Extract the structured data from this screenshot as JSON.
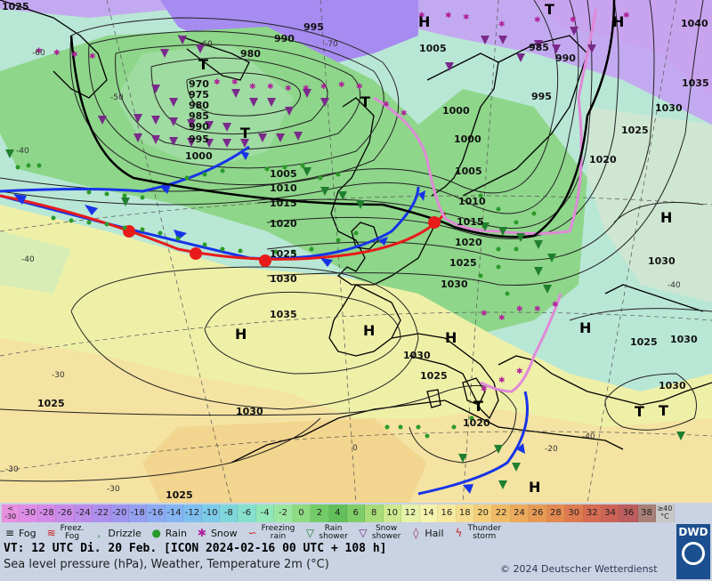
{
  "map": {
    "isobar_labels": [
      "1025",
      "990",
      "995",
      "1005",
      "985",
      "990",
      "995",
      "980",
      "970",
      "975",
      "980",
      "985",
      "990",
      "995",
      "1000",
      "1000",
      "1000",
      "1005",
      "1005",
      "1010",
      "1010",
      "1015",
      "1015",
      "1020",
      "1020",
      "1025",
      "1025",
      "1030",
      "1030",
      "1035",
      "1030",
      "1025",
      "1025",
      "1030",
      "1030",
      "1025",
      "1020",
      "1040",
      "1035",
      "1030",
      "1025",
      "1020",
      "1030",
      "1030",
      "1025"
    ],
    "pressure_centers": [
      "T",
      "T",
      "T",
      "T",
      "H",
      "T",
      "H",
      "H",
      "H",
      "H",
      "H",
      "T",
      "T",
      "H",
      "H"
    ],
    "temp_labels": [
      "-40",
      "-60",
      "-70",
      "-60",
      "-50",
      "-40",
      "-30",
      "-40",
      "-30",
      "-30",
      "0",
      "-40",
      "-20",
      "-30",
      "-40",
      "-50",
      "20",
      "-30",
      "20",
      "-20",
      "-20",
      "-30"
    ]
  },
  "legend": {
    "scale": [
      "<\n-30",
      "-30",
      "-28",
      "-26",
      "-24",
      "-22",
      "-20",
      "-18",
      "-16",
      "-14",
      "-12",
      "-10",
      "-8",
      "-6",
      "-4",
      "-2",
      "0",
      "2",
      "4",
      "6",
      "8",
      "10",
      "12",
      "14",
      "16",
      "18",
      "20",
      "22",
      "24",
      "26",
      "28",
      "30",
      "32",
      "34",
      "36",
      "38",
      "≥40\n°C"
    ],
    "scale_colors": [
      "#e88fe0",
      "#de8ee6",
      "#d48ae8",
      "#c98be8",
      "#bb8cea",
      "#ae8fed",
      "#a095ee",
      "#95a0f0",
      "#8daaf2",
      "#85b4f2",
      "#7fbff0",
      "#7ccbe8",
      "#7fd6dc",
      "#86e0cc",
      "#92e7b8",
      "#9be6a0",
      "#8edb84",
      "#74cc69",
      "#63bf5b",
      "#7fcd68",
      "#a7dc78",
      "#cde98f",
      "#e6f2a9",
      "#f5f3ad",
      "#f6e9a0",
      "#f6dd8d",
      "#f4ce78",
      "#f0bb66",
      "#ecaa5c",
      "#e79a54",
      "#e38a51",
      "#de7a50",
      "#d66c52",
      "#cc6357",
      "#be5d5e",
      "#a88078",
      "#c8c8c8"
    ],
    "symbols": [
      {
        "icon": "fog-icon",
        "label": "Fog"
      },
      {
        "icon": "freezing-fog-icon",
        "label": "Freez.\nFog"
      },
      {
        "icon": "drizzle-icon",
        "label": "Drizzle"
      },
      {
        "icon": "rain-icon",
        "label": "Rain"
      },
      {
        "icon": "snow-icon",
        "label": "Snow"
      },
      {
        "icon": "freezing-rain-icon",
        "label": "Freezing\nrain"
      },
      {
        "icon": "rain-shower-icon",
        "label": "Rain\nshower"
      },
      {
        "icon": "snow-shower-icon",
        "label": "Snow\nshower"
      },
      {
        "icon": "hail-icon",
        "label": "Hail"
      },
      {
        "icon": "thunderstorm-icon",
        "label": "Thunder\nstorm"
      }
    ],
    "vt": "VT: 12 UTC Di.  20 Feb. [ICON 2024-02-16  00 UTC + 108 h]",
    "subtitle": "Sea level pressure (hPa), Weather, Temperature 2m (°C)",
    "copyright": "© 2024 Deutscher Wetterdienst",
    "logo_text": "DWD"
  }
}
